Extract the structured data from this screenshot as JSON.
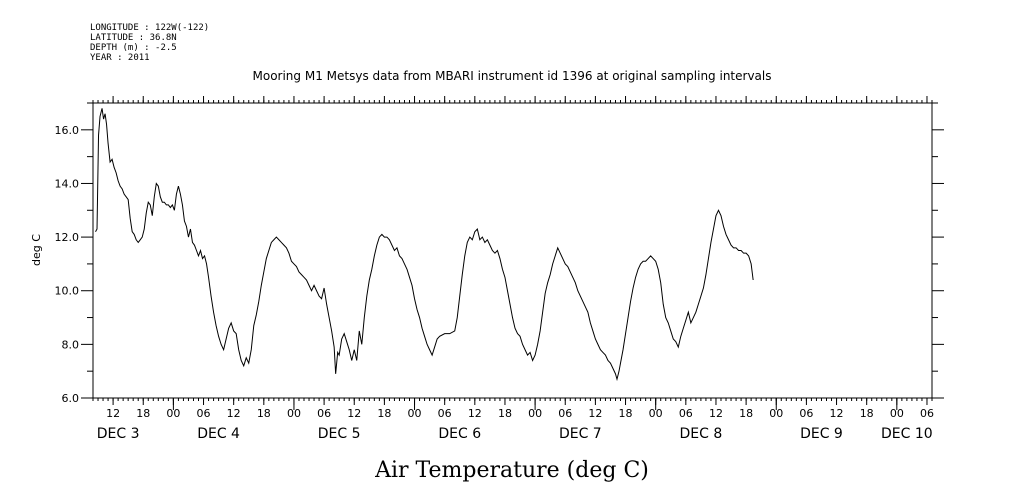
{
  "header": {
    "meta_lines": [
      "LONGITUDE : 122W(-122)",
      "LATITUDE : 36.8N",
      "DEPTH (m) : -2.5",
      "YEAR : 2011"
    ]
  },
  "chart_data": {
    "type": "line",
    "title": "Mooring M1 Metsys data from MBARI instrument id 1396 at original sampling intervals",
    "xlabel": "Air Temperature (deg C)",
    "ylabel": "deg C",
    "ylim": [
      6.0,
      17.0
    ],
    "yticks": [
      "6.0",
      "8.0",
      "10.0",
      "12.0",
      "14.0",
      "16.0"
    ],
    "x_unit": "hours since DEC 2 00:00 (2011)",
    "xlim": [
      8,
      175
    ],
    "hour_ticks": [
      {
        "h": 12,
        "label": "12"
      },
      {
        "h": 18,
        "label": "18"
      },
      {
        "h": 24,
        "label": "00"
      },
      {
        "h": 30,
        "label": "06"
      },
      {
        "h": 36,
        "label": "12"
      },
      {
        "h": 42,
        "label": "18"
      },
      {
        "h": 48,
        "label": "00"
      },
      {
        "h": 54,
        "label": "06"
      },
      {
        "h": 60,
        "label": "12"
      },
      {
        "h": 66,
        "label": "18"
      },
      {
        "h": 72,
        "label": "00"
      },
      {
        "h": 78,
        "label": "06"
      },
      {
        "h": 84,
        "label": "12"
      },
      {
        "h": 90,
        "label": "18"
      },
      {
        "h": 96,
        "label": "00"
      },
      {
        "h": 102,
        "label": "06"
      },
      {
        "h": 108,
        "label": "12"
      },
      {
        "h": 114,
        "label": "18"
      },
      {
        "h": 120,
        "label": "00"
      },
      {
        "h": 126,
        "label": "06"
      },
      {
        "h": 132,
        "label": "12"
      },
      {
        "h": 138,
        "label": "18"
      },
      {
        "h": 144,
        "label": "00"
      },
      {
        "h": 150,
        "label": "06"
      },
      {
        "h": 156,
        "label": "12"
      },
      {
        "h": 162,
        "label": "18"
      },
      {
        "h": 168,
        "label": "00"
      },
      {
        "h": 174,
        "label": "06"
      }
    ],
    "day_labels": [
      {
        "h": 13,
        "label": "DEC  3"
      },
      {
        "h": 33,
        "label": "DEC  4"
      },
      {
        "h": 57,
        "label": "DEC  5"
      },
      {
        "h": 81,
        "label": "DEC  6"
      },
      {
        "h": 105,
        "label": "DEC  7"
      },
      {
        "h": 129,
        "label": "DEC  8"
      },
      {
        "h": 153,
        "label": "DEC  9"
      },
      {
        "h": 170,
        "label": "DEC 10"
      }
    ],
    "grid": false,
    "series": [
      {
        "color": "#000000",
        "points": [
          [
            8.5,
            12.2
          ],
          [
            8.8,
            12.3
          ],
          [
            9.1,
            15.8
          ],
          [
            9.4,
            16.5
          ],
          [
            9.8,
            16.8
          ],
          [
            10.1,
            16.4
          ],
          [
            10.4,
            16.6
          ],
          [
            10.7,
            16.2
          ],
          [
            11.0,
            15.5
          ],
          [
            11.4,
            14.8
          ],
          [
            11.8,
            14.9
          ],
          [
            12.2,
            14.6
          ],
          [
            12.6,
            14.4
          ],
          [
            13.0,
            14.1
          ],
          [
            13.4,
            13.9
          ],
          [
            13.8,
            13.8
          ],
          [
            14.2,
            13.6
          ],
          [
            14.6,
            13.5
          ],
          [
            15.0,
            13.4
          ],
          [
            15.4,
            12.7
          ],
          [
            15.8,
            12.2
          ],
          [
            16.2,
            12.1
          ],
          [
            16.6,
            11.9
          ],
          [
            17.0,
            11.8
          ],
          [
            17.4,
            11.9
          ],
          [
            17.8,
            12.0
          ],
          [
            18.2,
            12.3
          ],
          [
            18.6,
            12.9
          ],
          [
            19.0,
            13.3
          ],
          [
            19.4,
            13.2
          ],
          [
            19.8,
            12.8
          ],
          [
            20.2,
            13.5
          ],
          [
            20.6,
            14.0
          ],
          [
            21.0,
            13.9
          ],
          [
            21.4,
            13.5
          ],
          [
            21.8,
            13.3
          ],
          [
            22.2,
            13.3
          ],
          [
            22.6,
            13.2
          ],
          [
            23.0,
            13.2
          ],
          [
            23.4,
            13.1
          ],
          [
            23.8,
            13.2
          ],
          [
            24.2,
            13.0
          ],
          [
            24.6,
            13.6
          ],
          [
            25.0,
            13.9
          ],
          [
            25.4,
            13.6
          ],
          [
            25.8,
            13.2
          ],
          [
            26.2,
            12.6
          ],
          [
            26.6,
            12.4
          ],
          [
            27.0,
            12.0
          ],
          [
            27.4,
            12.3
          ],
          [
            27.8,
            11.8
          ],
          [
            28.2,
            11.7
          ],
          [
            28.6,
            11.5
          ],
          [
            29.0,
            11.3
          ],
          [
            29.4,
            11.5
          ],
          [
            29.8,
            11.2
          ],
          [
            30.2,
            11.3
          ],
          [
            30.6,
            11.0
          ],
          [
            31.0,
            10.5
          ],
          [
            31.5,
            9.8
          ],
          [
            32.0,
            9.2
          ],
          [
            32.5,
            8.7
          ],
          [
            33.0,
            8.3
          ],
          [
            33.5,
            8.0
          ],
          [
            34.0,
            7.8
          ],
          [
            34.5,
            8.2
          ],
          [
            35.0,
            8.6
          ],
          [
            35.5,
            8.8
          ],
          [
            36.0,
            8.5
          ],
          [
            36.5,
            8.4
          ],
          [
            37.0,
            7.8
          ],
          [
            37.5,
            7.4
          ],
          [
            38.0,
            7.2
          ],
          [
            38.5,
            7.5
          ],
          [
            39.0,
            7.3
          ],
          [
            39.5,
            7.8
          ],
          [
            40.0,
            8.7
          ],
          [
            40.5,
            9.1
          ],
          [
            41.0,
            9.6
          ],
          [
            41.5,
            10.2
          ],
          [
            42.0,
            10.7
          ],
          [
            42.5,
            11.2
          ],
          [
            43.0,
            11.5
          ],
          [
            43.5,
            11.8
          ],
          [
            44.0,
            11.9
          ],
          [
            44.5,
            12.0
          ],
          [
            45.0,
            11.9
          ],
          [
            45.5,
            11.8
          ],
          [
            46.0,
            11.7
          ],
          [
            46.5,
            11.6
          ],
          [
            47.0,
            11.4
          ],
          [
            47.5,
            11.1
          ],
          [
            48.0,
            11.0
          ],
          [
            48.5,
            10.9
          ],
          [
            49.0,
            10.7
          ],
          [
            49.5,
            10.6
          ],
          [
            50.0,
            10.5
          ],
          [
            50.5,
            10.4
          ],
          [
            51.0,
            10.2
          ],
          [
            51.5,
            10.0
          ],
          [
            52.0,
            10.2
          ],
          [
            52.5,
            10.0
          ],
          [
            53.0,
            9.8
          ],
          [
            53.5,
            9.7
          ],
          [
            54.0,
            10.1
          ],
          [
            54.5,
            9.5
          ],
          [
            55.0,
            9.0
          ],
          [
            55.5,
            8.5
          ],
          [
            56.0,
            7.9
          ],
          [
            56.3,
            6.9
          ],
          [
            56.7,
            7.7
          ],
          [
            57.0,
            7.6
          ],
          [
            57.5,
            8.2
          ],
          [
            58.0,
            8.4
          ],
          [
            58.5,
            8.1
          ],
          [
            59.0,
            7.8
          ],
          [
            59.5,
            7.4
          ],
          [
            60.0,
            7.8
          ],
          [
            60.5,
            7.4
          ],
          [
            61.0,
            8.5
          ],
          [
            61.5,
            8.0
          ],
          [
            62.0,
            9.0
          ],
          [
            62.5,
            9.8
          ],
          [
            63.0,
            10.4
          ],
          [
            63.5,
            10.8
          ],
          [
            64.0,
            11.3
          ],
          [
            64.5,
            11.7
          ],
          [
            65.0,
            12.0
          ],
          [
            65.5,
            12.1
          ],
          [
            66.0,
            12.0
          ],
          [
            66.5,
            12.0
          ],
          [
            67.0,
            11.9
          ],
          [
            67.5,
            11.7
          ],
          [
            68.0,
            11.5
          ],
          [
            68.5,
            11.6
          ],
          [
            69.0,
            11.3
          ],
          [
            69.5,
            11.2
          ],
          [
            70.0,
            11.0
          ],
          [
            70.5,
            10.8
          ],
          [
            71.0,
            10.5
          ],
          [
            71.5,
            10.2
          ],
          [
            72.0,
            9.7
          ],
          [
            72.5,
            9.3
          ],
          [
            73.0,
            9.0
          ],
          [
            73.5,
            8.6
          ],
          [
            74.0,
            8.3
          ],
          [
            74.5,
            8.0
          ],
          [
            75.0,
            7.8
          ],
          [
            75.5,
            7.6
          ],
          [
            76.0,
            7.9
          ],
          [
            76.5,
            8.2
          ],
          [
            77.0,
            8.3
          ],
          [
            78.0,
            8.4
          ],
          [
            79.0,
            8.4
          ],
          [
            80.0,
            8.5
          ],
          [
            80.5,
            9.0
          ],
          [
            81.0,
            9.8
          ],
          [
            81.5,
            10.6
          ],
          [
            82.0,
            11.3
          ],
          [
            82.5,
            11.8
          ],
          [
            83.0,
            12.0
          ],
          [
            83.5,
            11.9
          ],
          [
            84.0,
            12.2
          ],
          [
            84.5,
            12.3
          ],
          [
            85.0,
            11.9
          ],
          [
            85.5,
            12.0
          ],
          [
            86.0,
            11.8
          ],
          [
            86.5,
            11.9
          ],
          [
            87.0,
            11.7
          ],
          [
            87.5,
            11.5
          ],
          [
            88.0,
            11.4
          ],
          [
            88.5,
            11.5
          ],
          [
            89.0,
            11.2
          ],
          [
            89.5,
            10.8
          ],
          [
            90.0,
            10.5
          ],
          [
            90.5,
            10.0
          ],
          [
            91.0,
            9.5
          ],
          [
            91.5,
            9.0
          ],
          [
            92.0,
            8.6
          ],
          [
            92.5,
            8.4
          ],
          [
            93.0,
            8.3
          ],
          [
            93.5,
            8.0
          ],
          [
            94.0,
            7.8
          ],
          [
            94.5,
            7.6
          ],
          [
            95.0,
            7.7
          ],
          [
            95.5,
            7.4
          ],
          [
            96.0,
            7.6
          ],
          [
            96.5,
            8.0
          ],
          [
            97.0,
            8.5
          ],
          [
            97.5,
            9.2
          ],
          [
            98.0,
            9.9
          ],
          [
            98.5,
            10.3
          ],
          [
            99.0,
            10.6
          ],
          [
            99.5,
            11.0
          ],
          [
            100.0,
            11.3
          ],
          [
            100.5,
            11.6
          ],
          [
            101.0,
            11.4
          ],
          [
            101.5,
            11.2
          ],
          [
            102.0,
            11.0
          ],
          [
            102.5,
            10.9
          ],
          [
            103.0,
            10.7
          ],
          [
            103.5,
            10.5
          ],
          [
            104.0,
            10.3
          ],
          [
            104.5,
            10.0
          ],
          [
            105.0,
            9.8
          ],
          [
            105.5,
            9.6
          ],
          [
            106.0,
            9.4
          ],
          [
            106.5,
            9.2
          ],
          [
            107.0,
            8.8
          ],
          [
            107.5,
            8.5
          ],
          [
            108.0,
            8.2
          ],
          [
            108.5,
            8.0
          ],
          [
            109.0,
            7.8
          ],
          [
            109.5,
            7.7
          ],
          [
            110.0,
            7.6
          ],
          [
            110.5,
            7.4
          ],
          [
            111.0,
            7.3
          ],
          [
            111.5,
            7.1
          ],
          [
            112.0,
            6.9
          ],
          [
            112.3,
            6.7
          ],
          [
            112.7,
            7.0
          ],
          [
            113.0,
            7.3
          ],
          [
            113.5,
            7.8
          ],
          [
            114.0,
            8.4
          ],
          [
            114.5,
            9.0
          ],
          [
            115.0,
            9.6
          ],
          [
            115.5,
            10.1
          ],
          [
            116.0,
            10.5
          ],
          [
            116.5,
            10.8
          ],
          [
            117.0,
            11.0
          ],
          [
            117.5,
            11.1
          ],
          [
            118.0,
            11.1
          ],
          [
            118.5,
            11.2
          ],
          [
            119.0,
            11.3
          ],
          [
            119.5,
            11.2
          ],
          [
            120.0,
            11.1
          ],
          [
            120.5,
            10.8
          ],
          [
            121.0,
            10.3
          ],
          [
            121.5,
            9.5
          ],
          [
            122.0,
            9.0
          ],
          [
            122.5,
            8.8
          ],
          [
            123.0,
            8.5
          ],
          [
            123.5,
            8.2
          ],
          [
            124.0,
            8.1
          ],
          [
            124.5,
            7.9
          ],
          [
            125.0,
            8.3
          ],
          [
            125.5,
            8.6
          ],
          [
            126.0,
            8.9
          ],
          [
            126.5,
            9.2
          ],
          [
            127.0,
            8.8
          ],
          [
            127.5,
            9.0
          ],
          [
            128.0,
            9.2
          ],
          [
            128.5,
            9.5
          ],
          [
            129.0,
            9.8
          ],
          [
            129.5,
            10.1
          ],
          [
            130.0,
            10.6
          ],
          [
            130.5,
            11.2
          ],
          [
            131.0,
            11.8
          ],
          [
            131.5,
            12.3
          ],
          [
            132.0,
            12.8
          ],
          [
            132.5,
            13.0
          ],
          [
            133.0,
            12.8
          ],
          [
            133.5,
            12.4
          ],
          [
            134.0,
            12.1
          ],
          [
            134.5,
            11.9
          ],
          [
            135.0,
            11.7
          ],
          [
            135.5,
            11.6
          ],
          [
            136.0,
            11.6
          ],
          [
            136.5,
            11.5
          ],
          [
            137.0,
            11.5
          ],
          [
            137.5,
            11.4
          ],
          [
            138.0,
            11.4
          ],
          [
            138.5,
            11.3
          ],
          [
            139.0,
            11.0
          ],
          [
            139.4,
            10.4
          ]
        ]
      }
    ]
  }
}
